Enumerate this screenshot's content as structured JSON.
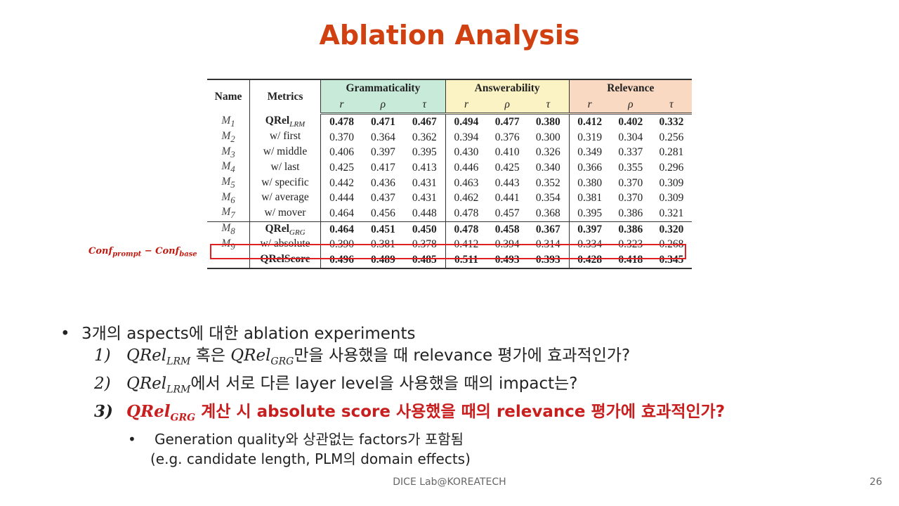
{
  "title": "Ablation Analysis",
  "table": {
    "col_name": "Name",
    "col_metrics": "Metrics",
    "groups": [
      "Grammaticality",
      "Answerability",
      "Relevance"
    ],
    "sub_headers": [
      "r",
      "ρ",
      "τ",
      "r",
      "ρ",
      "τ",
      "r",
      "ρ",
      "τ"
    ],
    "rows": [
      {
        "name": "M",
        "sub": "1",
        "metric": "QRel",
        "msub": "LRM",
        "values": [
          "0.478",
          "0.471",
          "0.467",
          "0.494",
          "0.477",
          "0.380",
          "0.412",
          "0.402",
          "0.332"
        ],
        "bold": true
      },
      {
        "name": "M",
        "sub": "2",
        "metric": "w/ first",
        "msub": "",
        "values": [
          "0.370",
          "0.364",
          "0.362",
          "0.394",
          "0.376",
          "0.300",
          "0.319",
          "0.304",
          "0.256"
        ],
        "bold": false
      },
      {
        "name": "M",
        "sub": "3",
        "metric": "w/ middle",
        "msub": "",
        "values": [
          "0.406",
          "0.397",
          "0.395",
          "0.430",
          "0.410",
          "0.326",
          "0.349",
          "0.337",
          "0.281"
        ],
        "bold": false
      },
      {
        "name": "M",
        "sub": "4",
        "metric": "w/ last",
        "msub": "",
        "values": [
          "0.425",
          "0.417",
          "0.413",
          "0.446",
          "0.425",
          "0.340",
          "0.366",
          "0.355",
          "0.296"
        ],
        "bold": false
      },
      {
        "name": "M",
        "sub": "5",
        "metric": "w/ specific",
        "msub": "",
        "values": [
          "0.442",
          "0.436",
          "0.431",
          "0.463",
          "0.443",
          "0.352",
          "0.380",
          "0.370",
          "0.309"
        ],
        "bold": false
      },
      {
        "name": "M",
        "sub": "6",
        "metric": "w/ average",
        "msub": "",
        "values": [
          "0.444",
          "0.437",
          "0.431",
          "0.462",
          "0.441",
          "0.354",
          "0.381",
          "0.370",
          "0.309"
        ],
        "bold": false
      },
      {
        "name": "M",
        "sub": "7",
        "metric": "w/ mover",
        "msub": "",
        "values": [
          "0.464",
          "0.456",
          "0.448",
          "0.478",
          "0.457",
          "0.368",
          "0.395",
          "0.386",
          "0.321"
        ],
        "bold": false
      },
      {
        "name": "M",
        "sub": "8",
        "metric": "QRel",
        "msub": "GRG",
        "values": [
          "0.464",
          "0.451",
          "0.450",
          "0.478",
          "0.458",
          "0.367",
          "0.397",
          "0.386",
          "0.320"
        ],
        "bold": true
      },
      {
        "name": "M",
        "sub": "9",
        "metric": "w/ absolute",
        "msub": "",
        "values": [
          "0.390",
          "0.381",
          "0.378",
          "0.412",
          "0.394",
          "0.314",
          "0.334",
          "0.323",
          "0.268"
        ],
        "bold": false
      },
      {
        "name": "",
        "sub": "",
        "metric": "QRelScore",
        "msub": "",
        "values": [
          "0.496",
          "0.489",
          "0.485",
          "0.511",
          "0.493",
          "0.393",
          "0.428",
          "0.418",
          "0.345"
        ],
        "bold": true
      }
    ]
  },
  "side_label": {
    "a": "Conf",
    "a_sub": "prompt",
    "op": " − ",
    "b": "Conf",
    "b_sub": "base"
  },
  "bullets": {
    "main": "3개의 aspects에 대한 ablation experiments",
    "items": [
      {
        "num": "1)",
        "q1": "QRel",
        "q1_sub": "LRM",
        "mid": " 혹은 ",
        "q2": "QRel",
        "q2_sub": "GRG",
        "rest": "만을 사용했을 때 relevance 평가에 효과적인가?"
      },
      {
        "num": "2)",
        "q1": "QRel",
        "q1_sub": "LRM",
        "rest": "에서 서로 다른 layer level을 사용했을 때의 impact는?"
      },
      {
        "num": "3)",
        "q1": "QRel",
        "q1_sub": "GRG",
        "rest": " 계산 시 absolute score 사용했을 때의 relevance 평가에 효과적인가?"
      }
    ],
    "sub_bullet_line1": "Generation quality와 상관없는 factors가 포함됨",
    "sub_bullet_line2": "(e.g. candidate length, PLM의 domain effects)"
  },
  "footer": "DICE  Lab@KOREATECH",
  "page_number": "26",
  "colors": {
    "title": "#d04010",
    "highlight": "#e02020",
    "grammaticality": "#c7ead9",
    "answerability": "#fbf3c4",
    "relevance": "#f9d9c2"
  }
}
